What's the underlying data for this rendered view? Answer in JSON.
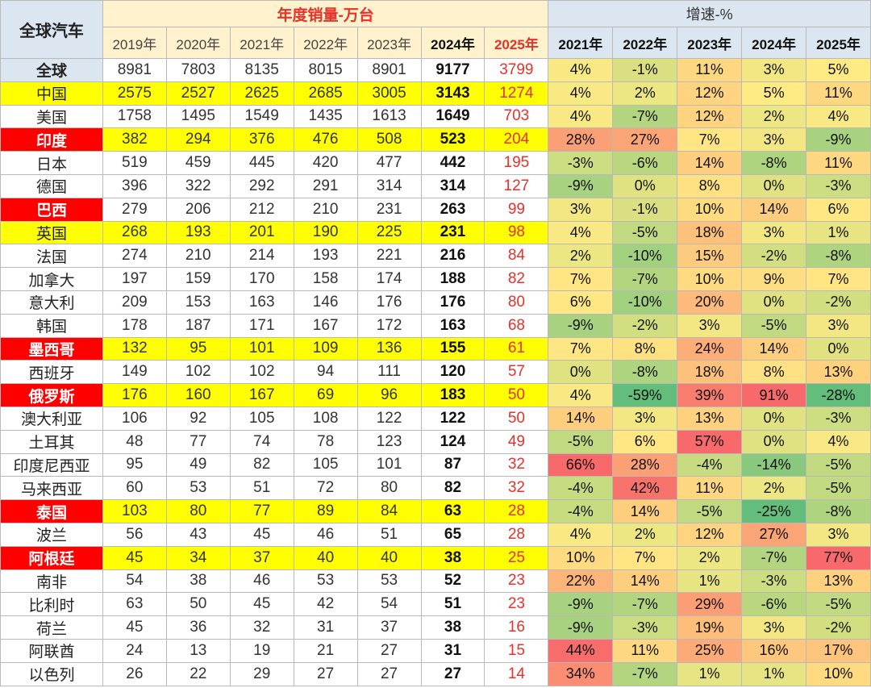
{
  "chart_data": {
    "type": "table",
    "header": {
      "corner": "全球汽车",
      "sales_title": "年度销量-万台",
      "growth_title": "增速-%",
      "sales_years": [
        "2019年",
        "2020年",
        "2021年",
        "2022年",
        "2023年",
        "2024年",
        "2025年"
      ],
      "growth_years": [
        "2021年",
        "2022年",
        "2023年",
        "2024年",
        "2025年"
      ]
    },
    "rows": [
      {
        "country": "全球",
        "sales": [
          "8981",
          "7803",
          "8135",
          "8015",
          "8901",
          "9177",
          "3799"
        ],
        "growth": [
          "4%",
          "-1%",
          "11%",
          "3%",
          "5%"
        ],
        "gv": [
          4,
          -1,
          11,
          3,
          5
        ],
        "style": "first"
      },
      {
        "country": "中国",
        "sales": [
          "2575",
          "2527",
          "2625",
          "2685",
          "3005",
          "3143",
          "1274"
        ],
        "growth": [
          "4%",
          "2%",
          "12%",
          "5%",
          "11%"
        ],
        "gv": [
          4,
          2,
          12,
          5,
          11
        ],
        "style": "yellow"
      },
      {
        "country": "美国",
        "sales": [
          "1758",
          "1495",
          "1549",
          "1435",
          "1613",
          "1649",
          "703"
        ],
        "growth": [
          "4%",
          "-7%",
          "12%",
          "2%",
          "4%"
        ],
        "gv": [
          4,
          -7,
          12,
          2,
          4
        ],
        "style": ""
      },
      {
        "country": "印度",
        "sales": [
          "382",
          "294",
          "376",
          "476",
          "508",
          "523",
          "204"
        ],
        "growth": [
          "28%",
          "27%",
          "7%",
          "3%",
          "-9%"
        ],
        "gv": [
          28,
          27,
          7,
          3,
          -9
        ],
        "style": "red"
      },
      {
        "country": "日本",
        "sales": [
          "519",
          "459",
          "445",
          "420",
          "477",
          "442",
          "195"
        ],
        "growth": [
          "-3%",
          "-6%",
          "14%",
          "-8%",
          "11%"
        ],
        "gv": [
          -3,
          -6,
          14,
          -8,
          11
        ],
        "style": ""
      },
      {
        "country": "德国",
        "sales": [
          "396",
          "322",
          "292",
          "291",
          "314",
          "314",
          "127"
        ],
        "growth": [
          "-9%",
          "0%",
          "8%",
          "0%",
          "-3%"
        ],
        "gv": [
          -9,
          0,
          8,
          0,
          -3
        ],
        "style": ""
      },
      {
        "country": "巴西",
        "sales": [
          "279",
          "206",
          "212",
          "210",
          "231",
          "263",
          "99"
        ],
        "growth": [
          "3%",
          "-1%",
          "10%",
          "14%",
          "6%"
        ],
        "gv": [
          3,
          -1,
          10,
          14,
          6
        ],
        "style": "redonly"
      },
      {
        "country": "英国",
        "sales": [
          "268",
          "193",
          "201",
          "190",
          "225",
          "231",
          "98"
        ],
        "growth": [
          "4%",
          "-5%",
          "18%",
          "3%",
          "1%"
        ],
        "gv": [
          4,
          -5,
          18,
          3,
          1
        ],
        "style": "yellow"
      },
      {
        "country": "法国",
        "sales": [
          "274",
          "210",
          "214",
          "193",
          "221",
          "216",
          "84"
        ],
        "growth": [
          "2%",
          "-10%",
          "15%",
          "-2%",
          "-8%"
        ],
        "gv": [
          2,
          -10,
          15,
          -2,
          -8
        ],
        "style": ""
      },
      {
        "country": "加拿大",
        "sales": [
          "197",
          "159",
          "170",
          "158",
          "174",
          "188",
          "82"
        ],
        "growth": [
          "7%",
          "-7%",
          "10%",
          "9%",
          "7%"
        ],
        "gv": [
          7,
          -7,
          10,
          9,
          7
        ],
        "style": ""
      },
      {
        "country": "意大利",
        "sales": [
          "209",
          "153",
          "163",
          "146",
          "176",
          "176",
          "80"
        ],
        "growth": [
          "6%",
          "-10%",
          "20%",
          "0%",
          "-2%"
        ],
        "gv": [
          6,
          -10,
          20,
          0,
          -2
        ],
        "style": ""
      },
      {
        "country": "韩国",
        "sales": [
          "178",
          "187",
          "171",
          "167",
          "172",
          "163",
          "68"
        ],
        "growth": [
          "-9%",
          "-2%",
          "3%",
          "-5%",
          "3%"
        ],
        "gv": [
          -9,
          -2,
          3,
          -5,
          3
        ],
        "style": ""
      },
      {
        "country": "墨西哥",
        "sales": [
          "132",
          "95",
          "101",
          "109",
          "136",
          "155",
          "61"
        ],
        "growth": [
          "7%",
          "8%",
          "24%",
          "14%",
          "0%"
        ],
        "gv": [
          7,
          8,
          24,
          14,
          0
        ],
        "style": "red"
      },
      {
        "country": "西班牙",
        "sales": [
          "149",
          "102",
          "102",
          "94",
          "111",
          "120",
          "57"
        ],
        "growth": [
          "0%",
          "-8%",
          "18%",
          "8%",
          "13%"
        ],
        "gv": [
          0,
          -8,
          18,
          8,
          13
        ],
        "style": ""
      },
      {
        "country": "俄罗斯",
        "sales": [
          "176",
          "160",
          "167",
          "69",
          "96",
          "183",
          "50"
        ],
        "growth": [
          "4%",
          "-59%",
          "39%",
          "91%",
          "-28%"
        ],
        "gv": [
          4,
          -59,
          39,
          91,
          -28
        ],
        "style": "red"
      },
      {
        "country": "澳大利亚",
        "sales": [
          "106",
          "92",
          "105",
          "108",
          "122",
          "122",
          "50"
        ],
        "growth": [
          "14%",
          "3%",
          "13%",
          "0%",
          "-3%"
        ],
        "gv": [
          14,
          3,
          13,
          0,
          -3
        ],
        "style": ""
      },
      {
        "country": "土耳其",
        "sales": [
          "48",
          "77",
          "74",
          "78",
          "123",
          "124",
          "49"
        ],
        "growth": [
          "-5%",
          "6%",
          "57%",
          "0%",
          "4%"
        ],
        "gv": [
          -5,
          6,
          57,
          0,
          4
        ],
        "style": ""
      },
      {
        "country": "印度尼西亚",
        "sales": [
          "95",
          "49",
          "82",
          "105",
          "101",
          "87",
          "32"
        ],
        "growth": [
          "66%",
          "28%",
          "-4%",
          "-14%",
          "-5%"
        ],
        "gv": [
          66,
          28,
          -4,
          -14,
          -5
        ],
        "style": ""
      },
      {
        "country": "马来西亚",
        "sales": [
          "60",
          "53",
          "51",
          "72",
          "80",
          "82",
          "32"
        ],
        "growth": [
          "-4%",
          "42%",
          "11%",
          "2%",
          "-5%"
        ],
        "gv": [
          -4,
          42,
          11,
          2,
          -5
        ],
        "style": ""
      },
      {
        "country": "泰国",
        "sales": [
          "103",
          "80",
          "77",
          "89",
          "84",
          "63",
          "28"
        ],
        "growth": [
          "-4%",
          "14%",
          "-5%",
          "-25%",
          "-8%"
        ],
        "gv": [
          -4,
          14,
          -5,
          -25,
          -8
        ],
        "style": "red"
      },
      {
        "country": "波兰",
        "sales": [
          "56",
          "43",
          "45",
          "46",
          "51",
          "65",
          "28"
        ],
        "growth": [
          "4%",
          "2%",
          "12%",
          "27%",
          "3%"
        ],
        "gv": [
          4,
          2,
          12,
          27,
          3
        ],
        "style": ""
      },
      {
        "country": "阿根廷",
        "sales": [
          "45",
          "34",
          "37",
          "40",
          "40",
          "38",
          "25"
        ],
        "growth": [
          "10%",
          "7%",
          "2%",
          "-7%",
          "77%"
        ],
        "gv": [
          10,
          7,
          2,
          -7,
          77
        ],
        "style": "red"
      },
      {
        "country": "南非",
        "sales": [
          "54",
          "38",
          "46",
          "53",
          "53",
          "52",
          "23"
        ],
        "growth": [
          "22%",
          "14%",
          "1%",
          "-3%",
          "13%"
        ],
        "gv": [
          22,
          14,
          1,
          -3,
          13
        ],
        "style": ""
      },
      {
        "country": "比利时",
        "sales": [
          "63",
          "50",
          "45",
          "42",
          "54",
          "51",
          "23"
        ],
        "growth": [
          "-9%",
          "-7%",
          "29%",
          "-6%",
          "-5%"
        ],
        "gv": [
          -9,
          -7,
          29,
          -6,
          -5
        ],
        "style": ""
      },
      {
        "country": "荷兰",
        "sales": [
          "45",
          "36",
          "32",
          "31",
          "37",
          "38",
          "16"
        ],
        "growth": [
          "-9%",
          "-3%",
          "19%",
          "3%",
          "-2%"
        ],
        "gv": [
          -9,
          -3,
          19,
          3,
          -2
        ],
        "style": ""
      },
      {
        "country": "阿联酋",
        "sales": [
          "24",
          "13",
          "19",
          "21",
          "27",
          "31",
          "15"
        ],
        "growth": [
          "44%",
          "11%",
          "25%",
          "16%",
          "17%"
        ],
        "gv": [
          44,
          11,
          25,
          16,
          17
        ],
        "style": ""
      },
      {
        "country": "以色列",
        "sales": [
          "26",
          "22",
          "29",
          "27",
          "27",
          "27",
          "14"
        ],
        "growth": [
          "34%",
          "-7%",
          "1%",
          "1%",
          "10%"
        ],
        "gv": [
          34,
          -7,
          1,
          1,
          10
        ],
        "style": ""
      }
    ],
    "colors": {
      "positive_high": "#f8696b",
      "mid": "#ffeb84",
      "negative_low": "#63be7b"
    }
  }
}
